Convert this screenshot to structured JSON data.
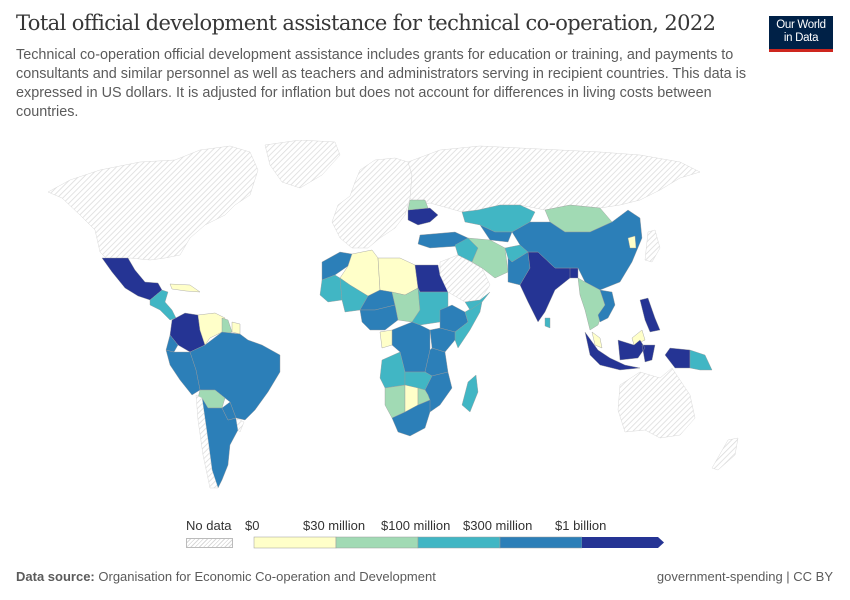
{
  "header": {
    "title": "Total official development assistance for technical co-operation, 2022",
    "subtitle": "Technical co-operation official development assistance includes grants for education or training, and payments to consultants and similar personnel as well as teachers and administrators serving in recipient countries. This data is expressed in US dollars. It is adjusted for inflation but does not account for differences in living costs between countries.",
    "logo_line1": "Our World",
    "logo_line2": "in Data"
  },
  "legend": {
    "no_data_label": "No data",
    "bins": [
      {
        "label": "$0",
        "color": "#ffffc9"
      },
      {
        "label": "$30 million",
        "color": "#a1dab4"
      },
      {
        "label": "$100 million",
        "color": "#41b6c4"
      },
      {
        "label": "$300 million",
        "color": "#2c7fb8"
      },
      {
        "label": "$1 billion",
        "color": "#253494"
      }
    ],
    "no_data_color": "#e8e8e8"
  },
  "footer": {
    "source_label": "Data source:",
    "source_text": "Organisation for Economic Co-operation and Development",
    "right_text": "government-spending | CC BY"
  },
  "chart_data": {
    "type": "choropleth",
    "title": "Total official development assistance for technical co-operation, 2022",
    "unit": "US dollars (inflation-adjusted)",
    "bins": [
      "$0–$30 million",
      "$30–$100 million",
      "$100–$300 million",
      "$300 million–$1 billion",
      "> $1 billion"
    ],
    "regions": [
      {
        "name": "North America",
        "bin": "no-data"
      },
      {
        "name": "Greenland",
        "bin": "no-data"
      },
      {
        "name": "Mexico",
        "bin": "> $1 billion"
      },
      {
        "name": "Cuba",
        "bin": "$0–$30 million"
      },
      {
        "name": "Central America",
        "bin": "$100–$300 million"
      },
      {
        "name": "Colombia",
        "bin": "> $1 billion"
      },
      {
        "name": "Venezuela",
        "bin": "$0–$30 million"
      },
      {
        "name": "Guyana",
        "bin": "$30–$100 million"
      },
      {
        "name": "Suriname",
        "bin": "$0–$30 million"
      },
      {
        "name": "Brazil",
        "bin": "$300 million–$1 billion"
      },
      {
        "name": "Peru",
        "bin": "$300 million–$1 billion"
      },
      {
        "name": "Ecuador",
        "bin": "$300 million–$1 billion"
      },
      {
        "name": "Bolivia",
        "bin": "$30–$100 million"
      },
      {
        "name": "Argentina",
        "bin": "$300 million–$1 billion"
      },
      {
        "name": "Paraguay",
        "bin": "$300 million–$1 billion"
      },
      {
        "name": "Chile",
        "bin": "no-data"
      },
      {
        "name": "Uruguay",
        "bin": "no-data"
      },
      {
        "name": "Europe",
        "bin": "no-data"
      },
      {
        "name": "Russia",
        "bin": "no-data"
      },
      {
        "name": "Ukraine",
        "bin": "> $1 billion"
      },
      {
        "name": "Belarus",
        "bin": "$30–$100 million"
      },
      {
        "name": "Turkey",
        "bin": "$300 million–$1 billion"
      },
      {
        "name": "Morocco",
        "bin": "$300 million–$1 billion"
      },
      {
        "name": "Algeria",
        "bin": "$0–$30 million"
      },
      {
        "name": "Libya",
        "bin": "$0–$30 million"
      },
      {
        "name": "Egypt",
        "bin": "> $1 billion"
      },
      {
        "name": "Mauritania",
        "bin": "$100–$300 million"
      },
      {
        "name": "Mali",
        "bin": "$100–$300 million"
      },
      {
        "name": "Niger",
        "bin": "$300 million–$1 billion"
      },
      {
        "name": "Chad",
        "bin": "$30–$100 million"
      },
      {
        "name": "Sudan",
        "bin": "$100–$300 million"
      },
      {
        "name": "Ethiopia",
        "bin": "$300 million–$1 billion"
      },
      {
        "name": "Somalia",
        "bin": "$100–$300 million"
      },
      {
        "name": "Nigeria",
        "bin": "$300 million–$1 billion"
      },
      {
        "name": "DR Congo",
        "bin": "$300 million–$1 billion"
      },
      {
        "name": "Tanzania",
        "bin": "$300 million–$1 billion"
      },
      {
        "name": "Kenya",
        "bin": "$300 million–$1 billion"
      },
      {
        "name": "Angola",
        "bin": "$100–$300 million"
      },
      {
        "name": "Zambia",
        "bin": "$100–$300 million"
      },
      {
        "name": "Mozambique",
        "bin": "$300 million–$1 billion"
      },
      {
        "name": "Namibia",
        "bin": "$30–$100 million"
      },
      {
        "name": "Botswana",
        "bin": "$0–$30 million"
      },
      {
        "name": "Zimbabwe",
        "bin": "$30–$100 million"
      },
      {
        "name": "South Africa",
        "bin": "$300 million–$1 billion"
      },
      {
        "name": "Madagascar",
        "bin": "$100–$300 million"
      },
      {
        "name": "Gabon",
        "bin": "$0–$30 million"
      },
      {
        "name": "Saudi Arabia",
        "bin": "no-data"
      },
      {
        "name": "Yemen",
        "bin": "$100–$300 million"
      },
      {
        "name": "Iraq",
        "bin": "$100–$300 million"
      },
      {
        "name": "Iran",
        "bin": "$30–$100 million"
      },
      {
        "name": "Kazakhstan",
        "bin": "$100–$300 million"
      },
      {
        "name": "Uzbekistan",
        "bin": "$300 million–$1 billion"
      },
      {
        "name": "Afghanistan",
        "bin": "$100–$300 million"
      },
      {
        "name": "Pakistan",
        "bin": "$300 million–$1 billion"
      },
      {
        "name": "India",
        "bin": "> $1 billion"
      },
      {
        "name": "Bangladesh",
        "bin": "> $1 billion"
      },
      {
        "name": "Sri Lanka",
        "bin": "$100–$300 million"
      },
      {
        "name": "Mongolia",
        "bin": "$30–$100 million"
      },
      {
        "name": "China",
        "bin": "$300 million–$1 billion"
      },
      {
        "name": "North Korea",
        "bin": "$0–$30 million"
      },
      {
        "name": "Myanmar / Thailand / Laos",
        "bin": "$30–$100 million"
      },
      {
        "name": "Vietnam",
        "bin": "$300 million–$1 billion"
      },
      {
        "name": "Malaysia",
        "bin": "$0–$30 million"
      },
      {
        "name": "Indonesia",
        "bin": "> $1 billion"
      },
      {
        "name": "Philippines",
        "bin": "> $1 billion"
      },
      {
        "name": "Papua New Guinea",
        "bin": "$100–$300 million"
      },
      {
        "name": "Australia",
        "bin": "no-data"
      },
      {
        "name": "New Zealand",
        "bin": "no-data"
      },
      {
        "name": "Japan",
        "bin": "no-data"
      }
    ]
  }
}
